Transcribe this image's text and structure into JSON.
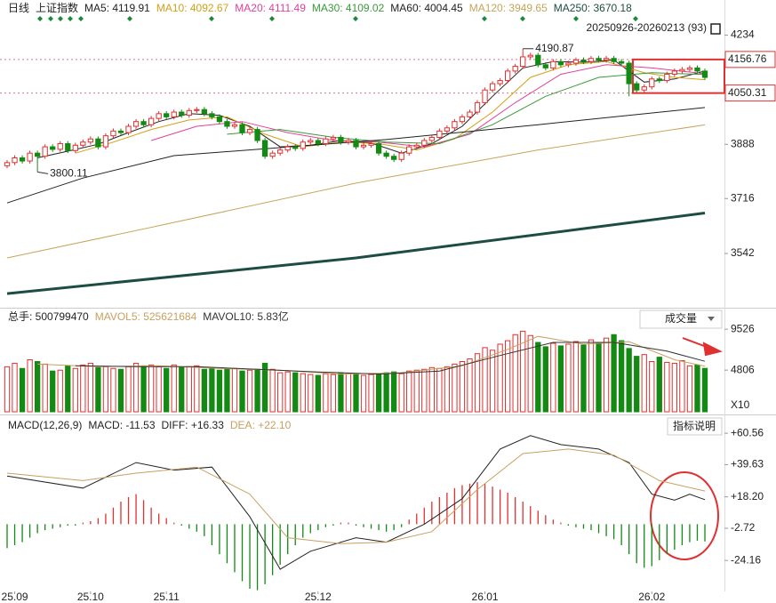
{
  "chart_data": [
    {
      "type": "candlestick",
      "title": "日线",
      "subtitle": "上证指数",
      "range_label": "20250926-20260213 (93)",
      "xlim": [
        0,
        92
      ],
      "ylim": [
        3373,
        4317
      ],
      "yticks": [
        4234,
        3888,
        3716,
        3542
      ],
      "marked_levels": [
        4156.76,
        4050.31
      ],
      "annotations": [
        {
          "x": 68,
          "y": 4190.87
        },
        {
          "x": 4,
          "y": 3800.11
        }
      ],
      "up_color": "#e03030",
      "down_color": "#138a13",
      "open": [
        3820,
        3830,
        3845,
        3835,
        3860,
        3850,
        3880,
        3872,
        3890,
        3868,
        3885,
        3895,
        3905,
        3880,
        3915,
        3930,
        3925,
        3945,
        3960,
        3950,
        3970,
        3985,
        3975,
        3990,
        3980,
        3995,
        3998,
        3985,
        3975,
        3960,
        3945,
        3950,
        3925,
        3935,
        3900,
        3850,
        3860,
        3870,
        3880,
        3875,
        3895,
        3900,
        3890,
        3905,
        3910,
        3895,
        3900,
        3880,
        3885,
        3890,
        3860,
        3850,
        3840,
        3860,
        3880,
        3885,
        3900,
        3910,
        3930,
        3940,
        3960,
        3975,
        3990,
        4020,
        4060,
        4080,
        4090,
        4120,
        4135,
        4165,
        4170,
        4140,
        4130,
        4150,
        4140,
        4145,
        4155,
        4150,
        4160,
        4155,
        4160,
        4150,
        4145,
        4080,
        4060,
        4070,
        4095,
        4090,
        4110,
        4120,
        4125,
        4130,
        4120
      ],
      "high": [
        3838,
        3853,
        3853,
        3868,
        3868,
        3888,
        3888,
        3898,
        3898,
        3893,
        3903,
        3913,
        3913,
        3923,
        3938,
        3938,
        3953,
        3968,
        3968,
        3978,
        3993,
        3993,
        3998,
        3998,
        4003,
        4006,
        4006,
        3993,
        3983,
        3968,
        3958,
        3958,
        3943,
        3943,
        3908,
        3868,
        3878,
        3888,
        3888,
        3903,
        3908,
        3908,
        3913,
        3918,
        3918,
        3908,
        3908,
        3893,
        3898,
        3898,
        3868,
        3858,
        3868,
        3888,
        3893,
        3908,
        3918,
        3938,
        3948,
        3968,
        3983,
        3998,
        4028,
        4068,
        4088,
        4098,
        4128,
        4143,
        4190.87,
        4178,
        4178,
        4148,
        4158,
        4158,
        4153,
        4163,
        4163,
        4168,
        4168,
        4168,
        4168,
        4158,
        4153,
        4088,
        4078,
        4103,
        4103,
        4118,
        4128,
        4133,
        4138,
        4138,
        4128
      ],
      "low": [
        3812,
        3822,
        3827,
        3827,
        3800.11,
        3842,
        3864,
        3864,
        3860,
        3860,
        3877,
        3887,
        3872,
        3872,
        3907,
        3917,
        3917,
        3937,
        3942,
        3942,
        3962,
        3967,
        3967,
        3972,
        3972,
        3987,
        3977,
        3967,
        3952,
        3937,
        3937,
        3917,
        3917,
        3892,
        3842,
        3842,
        3852,
        3862,
        3867,
        3867,
        3887,
        3882,
        3882,
        3897,
        3887,
        3887,
        3872,
        3872,
        3877,
        3852,
        3842,
        3832,
        3832,
        3852,
        3872,
        3877,
        3892,
        3902,
        3922,
        3932,
        3952,
        3967,
        3982,
        4012,
        4052,
        4072,
        4082,
        4112,
        4127,
        4157,
        4132,
        4122,
        4122,
        4132,
        4132,
        4137,
        4142,
        4142,
        4147,
        4147,
        4142,
        4137,
        4040,
        4052,
        4052,
        4062,
        4082,
        4082,
        4102,
        4112,
        4117,
        4112,
        4092
      ],
      "close": [
        3830,
        3845,
        3835,
        3860,
        3850,
        3880,
        3872,
        3890,
        3868,
        3885,
        3895,
        3905,
        3880,
        3915,
        3930,
        3925,
        3945,
        3960,
        3950,
        3970,
        3985,
        3975,
        3990,
        3980,
        3995,
        3998,
        3985,
        3975,
        3960,
        3945,
        3950,
        3925,
        3935,
        3900,
        3850,
        3860,
        3870,
        3880,
        3875,
        3895,
        3900,
        3890,
        3905,
        3910,
        3895,
        3900,
        3880,
        3885,
        3890,
        3860,
        3850,
        3840,
        3860,
        3880,
        3885,
        3900,
        3910,
        3930,
        3940,
        3960,
        3975,
        3990,
        4020,
        4060,
        4080,
        4090,
        4120,
        4135,
        4165,
        4170,
        4140,
        4130,
        4150,
        4140,
        4145,
        4155,
        4150,
        4160,
        4155,
        4160,
        4150,
        4145,
        4080,
        4060,
        4070,
        4095,
        4090,
        4110,
        4120,
        4125,
        4130,
        4120,
        4100
      ],
      "series": [
        {
          "name": "MA5: 4119.91",
          "color": "#222222",
          "x": [
            4,
            8,
            12,
            16,
            20,
            24,
            28,
            32,
            36,
            40,
            44,
            48,
            52,
            56,
            60,
            64,
            68,
            72,
            76,
            80,
            84,
            88,
            92
          ],
          "values": [
            3845,
            3866,
            3888,
            3925,
            3960,
            3985,
            3980,
            3945,
            3880,
            3885,
            3900,
            3892,
            3860,
            3890,
            3945,
            4040,
            4130,
            4150,
            4148,
            4155,
            4085,
            4095,
            4119.91
          ]
        },
        {
          "name": "MA10: 4092.67",
          "color": "#d4a017",
          "x": [
            9,
            14,
            19,
            24,
            29,
            34,
            39,
            44,
            49,
            54,
            59,
            64,
            69,
            74,
            79,
            84,
            88,
            92
          ],
          "values": [
            3860,
            3895,
            3935,
            3965,
            3975,
            3920,
            3880,
            3895,
            3890,
            3870,
            3905,
            3990,
            4100,
            4140,
            4150,
            4115,
            4100,
            4092.67
          ]
        },
        {
          "name": "MA20: 4111.49",
          "color": "#e0409a",
          "x": [
            19,
            25,
            31,
            37,
            43,
            49,
            55,
            61,
            67,
            73,
            79,
            85,
            92
          ],
          "values": [
            3900,
            3945,
            3960,
            3925,
            3900,
            3895,
            3880,
            3920,
            4020,
            4110,
            4140,
            4130,
            4111.49
          ]
        },
        {
          "name": "MA30: 4109.02",
          "color": "#3a9a3a",
          "x": [
            29,
            36,
            43,
            50,
            57,
            64,
            71,
            78,
            85,
            92
          ],
          "values": [
            3920,
            3935,
            3910,
            3895,
            3890,
            3950,
            4040,
            4100,
            4115,
            4109.02
          ]
        },
        {
          "name": "MA60: 4004.45",
          "color": "#222222",
          "x": [
            0,
            10,
            22,
            50,
            70,
            92
          ],
          "values": [
            3702,
            3781,
            3852,
            3903,
            3950,
            4004.45
          ]
        },
        {
          "name": "MA120: 3949.65",
          "color": "#c8a45a",
          "x": [
            0,
            20,
            46,
            70,
            92
          ],
          "values": [
            3528,
            3630,
            3765,
            3870,
            3949.65
          ]
        },
        {
          "name": "MA250: 3670.18",
          "color": "#1d4d42",
          "width": 3,
          "x": [
            0,
            46,
            92
          ],
          "values": [
            3415,
            3528,
            3670.18
          ]
        }
      ]
    },
    {
      "type": "bar",
      "title": "总手: 500799470",
      "button": "成交量",
      "unit_label": "X10",
      "xlim": [
        0,
        92
      ],
      "ylim": [
        0,
        11800
      ],
      "yticks": [
        9526,
        4806
      ],
      "values": [
        5200,
        5600,
        5000,
        6000,
        5800,
        5500,
        4700,
        4800,
        5300,
        5000,
        5400,
        5600,
        5100,
        5200,
        5000,
        4900,
        5200,
        5600,
        5300,
        5400,
        5200,
        5000,
        5400,
        5100,
        5200,
        5300,
        4900,
        5000,
        4800,
        4900,
        5000,
        4700,
        4800,
        4900,
        5600,
        4900,
        4500,
        4600,
        4500,
        4400,
        4300,
        4200,
        4400,
        4300,
        4500,
        4400,
        4300,
        4200,
        4300,
        4400,
        4500,
        4600,
        4400,
        4700,
        4800,
        4900,
        5100,
        5000,
        5200,
        5500,
        5800,
        6100,
        6700,
        7400,
        7100,
        7800,
        8200,
        8900,
        9300,
        8800,
        8000,
        7500,
        7900,
        7600,
        7800,
        8100,
        7700,
        8300,
        7900,
        8500,
        8900,
        8200,
        7300,
        6400,
        6600,
        5800,
        6300,
        5700,
        5600,
        5900,
        5300,
        5400,
        5008
      ],
      "series": [
        {
          "name": "MAVOL5: 525621684",
          "color": "#c8a060",
          "x": [
            4,
            12,
            20,
            28,
            36,
            44,
            52,
            60,
            66,
            70,
            76,
            82,
            88,
            92
          ],
          "values": [
            5500,
            5200,
            5300,
            5000,
            4800,
            4350,
            4500,
            5300,
            7200,
            8700,
            7800,
            8100,
            6000,
            5256
          ]
        },
        {
          "name": "MAVOL10: 5.83亿",
          "color": "#333333",
          "x": [
            9,
            17,
            25,
            33,
            41,
            49,
            57,
            65,
            72,
            80,
            87,
            92
          ],
          "values": [
            5300,
            5200,
            5200,
            4900,
            4600,
            4350,
            4700,
            6500,
            8000,
            8000,
            7000,
            5830
          ]
        }
      ]
    },
    {
      "type": "macd",
      "title": "MACD(12,26,9)",
      "name": "MACD: -11.53",
      "button": "指标说明",
      "xlim": [
        0,
        92
      ],
      "ylim": [
        -44.8,
        70.7
      ],
      "yticks": [
        {
          "value": 60.56,
          "label": "+60.56"
        },
        {
          "value": 39.63,
          "label": "+39.63"
        },
        {
          "value": 18.2,
          "label": "+18.20"
        },
        -2.72,
        -24.16
      ],
      "xticks": [
        {
          "value": 1,
          "label": "25.09"
        },
        {
          "value": 11,
          "label": "25.10"
        },
        {
          "value": 21,
          "label": "25.11"
        },
        {
          "value": 41,
          "label": "25.12"
        },
        {
          "value": 63,
          "label": "26.01"
        },
        {
          "value": 85,
          "label": "26.02"
        }
      ],
      "values": [
        -16,
        -14,
        -12,
        -9,
        -6,
        -4,
        -3,
        -2,
        -1,
        -1,
        1,
        2,
        4,
        7,
        11,
        15,
        18,
        20,
        16,
        11,
        7,
        4,
        1,
        -1,
        -3,
        -5,
        -8,
        -14,
        -20,
        -26,
        -32,
        -38,
        -43,
        -44,
        -40,
        -34,
        -27,
        -20,
        -14,
        -9,
        -6,
        -4,
        -2,
        -1,
        1,
        1,
        -1,
        -2,
        -3,
        -4,
        -5,
        -4,
        -2,
        3,
        7,
        11,
        15,
        18,
        21,
        24,
        26,
        27,
        28,
        27,
        25,
        23,
        21,
        18,
        15,
        12,
        9,
        6,
        3,
        1,
        -1,
        -2,
        -3,
        -4,
        -6,
        -8,
        -10,
        -14,
        -20,
        -26,
        -29,
        -28,
        -24,
        -20,
        -17,
        -14,
        -12,
        -11,
        -11.53
      ],
      "series": [
        {
          "name": "DIFF: +16.33",
          "color": "#222222",
          "x": [
            0,
            10,
            17,
            22,
            27,
            32,
            36,
            40,
            46,
            50,
            55,
            60,
            65,
            69,
            73,
            78,
            82,
            85,
            88,
            90,
            92
          ],
          "values": [
            32,
            24,
            41,
            36,
            38,
            5,
            -30,
            -18,
            -9,
            -12,
            0,
            17,
            50,
            59,
            53,
            50,
            41,
            20,
            16,
            20,
            16.33
          ]
        },
        {
          "name": "DEA: +22.10",
          "color": "#c8a060",
          "x": [
            0,
            10,
            17,
            25,
            32,
            37,
            44,
            50,
            56,
            62,
            68,
            74,
            80,
            86,
            92
          ],
          "values": [
            34,
            29,
            34,
            38,
            20,
            -9,
            -13,
            -12,
            -5,
            23,
            47,
            50,
            46,
            29,
            22.1
          ]
        }
      ]
    }
  ]
}
